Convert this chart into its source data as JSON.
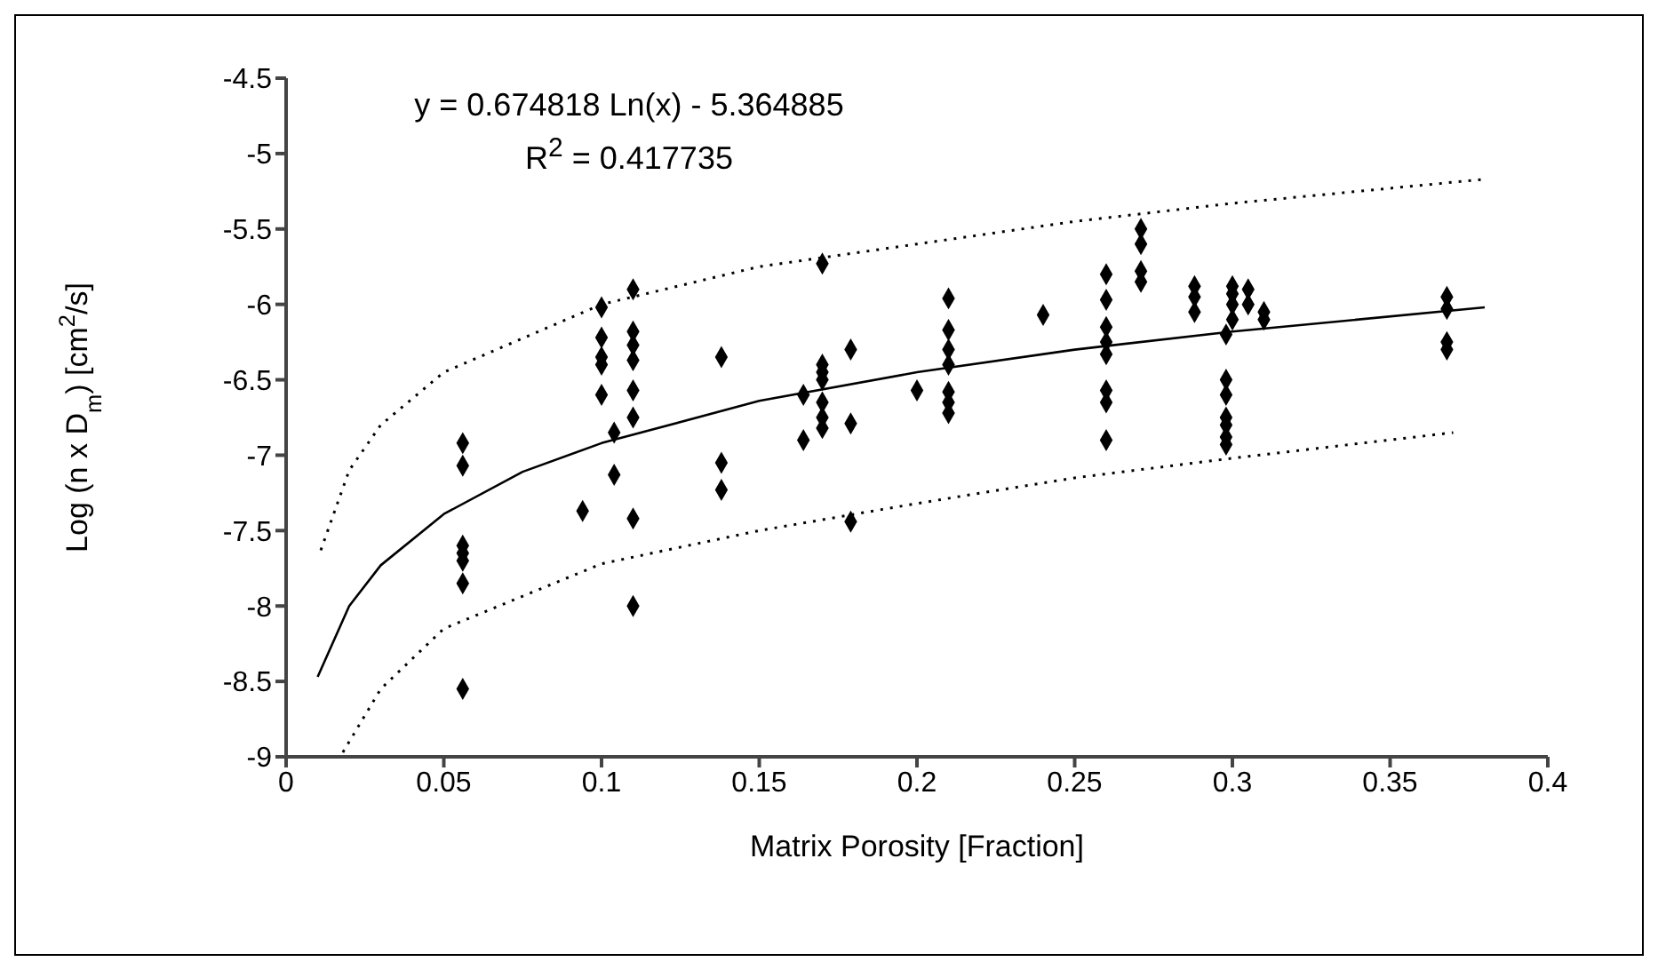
{
  "chart_data": {
    "type": "scatter",
    "xlabel": "Matrix Porosity [Fraction]",
    "ylabel": "Log (n x D$_{m}$) [cm$^{2}$/s]",
    "xlim": [
      0,
      0.4
    ],
    "xticks": [
      0,
      0.05,
      0.1,
      0.15,
      0.2,
      0.25,
      0.3,
      0.35,
      0.4
    ],
    "ylim": [
      -9,
      -4.5
    ],
    "yticks": [
      -9,
      -8.5,
      -8,
      -7.5,
      -7,
      -6.5,
      -6,
      -5.5,
      -5,
      -4.5
    ],
    "grid": false,
    "legend": false,
    "marker": "diamond",
    "annotations": [
      "y = 0.674818 Ln(x) - 5.364885",
      "R$^{2}$ = 0.417735"
    ],
    "series": [
      {
        "color": "#000000",
        "x": [
          0.056,
          0.056,
          0.056,
          0.056,
          0.056,
          0.056,
          0.056,
          0.094,
          0.1,
          0.1,
          0.1,
          0.1,
          0.1,
          0.104,
          0.104,
          0.11,
          0.11,
          0.11,
          0.11,
          0.11,
          0.11,
          0.11,
          0.11,
          0.138,
          0.138,
          0.138,
          0.164,
          0.164,
          0.17,
          0.17,
          0.17,
          0.17,
          0.17,
          0.17,
          0.17,
          0.179,
          0.179,
          0.179,
          0.2,
          0.21,
          0.21,
          0.21,
          0.21,
          0.21,
          0.21,
          0.21,
          0.24,
          0.26,
          0.26,
          0.26,
          0.26,
          0.26,
          0.26,
          0.26,
          0.26,
          0.271,
          0.271,
          0.271,
          0.271,
          0.288,
          0.288,
          0.288,
          0.298,
          0.298,
          0.298,
          0.298,
          0.298,
          0.298,
          0.298,
          0.3,
          0.3,
          0.3,
          0.3,
          0.305,
          0.305,
          0.31,
          0.31,
          0.368,
          0.368,
          0.368,
          0.368
        ],
        "values": [
          -6.92,
          -7.07,
          -7.6,
          -7.65,
          -7.7,
          -7.85,
          -8.55,
          -7.37,
          -6.02,
          -6.22,
          -6.35,
          -6.4,
          -6.6,
          -6.85,
          -7.13,
          -5.9,
          -6.18,
          -6.27,
          -6.37,
          -6.57,
          -6.75,
          -7.42,
          -8.0,
          -6.35,
          -7.05,
          -7.23,
          -6.6,
          -6.9,
          -5.73,
          -6.4,
          -6.45,
          -6.5,
          -6.65,
          -6.75,
          -6.82,
          -6.3,
          -6.79,
          -7.44,
          -6.57,
          -5.96,
          -6.17,
          -6.3,
          -6.4,
          -6.58,
          -6.65,
          -6.72,
          -6.07,
          -5.8,
          -5.97,
          -6.15,
          -6.25,
          -6.33,
          -6.57,
          -6.65,
          -6.9,
          -5.5,
          -5.6,
          -5.78,
          -5.85,
          -5.88,
          -5.95,
          -6.05,
          -6.2,
          -6.5,
          -6.6,
          -6.75,
          -6.8,
          -6.88,
          -6.93,
          -5.88,
          -5.93,
          -6.0,
          -6.1,
          -5.9,
          -6.0,
          -6.05,
          -6.1,
          -5.95,
          -6.03,
          -6.25,
          -6.3
        ]
      },
      {
        "type": "line",
        "color": "#000000",
        "marker": "none",
        "line_style": "solid",
        "x": [
          0.01,
          0.02,
          0.03,
          0.05,
          0.075,
          0.1,
          0.15,
          0.2,
          0.25,
          0.3,
          0.38
        ],
        "values": [
          -8.47,
          -8.0,
          -7.73,
          -7.39,
          -7.11,
          -6.92,
          -6.64,
          -6.45,
          -6.3,
          -6.18,
          -6.02
        ]
      },
      {
        "type": "line",
        "color": "#000000",
        "marker": "none",
        "line_style": "dotted",
        "x": [
          0.011,
          0.02,
          0.03,
          0.05,
          0.1,
          0.15,
          0.2,
          0.25,
          0.3,
          0.38
        ],
        "values": [
          -7.63,
          -7.1,
          -6.8,
          -6.45,
          -6.0,
          -5.75,
          -5.6,
          -5.45,
          -5.33,
          -5.17
        ]
      },
      {
        "type": "line",
        "color": "#000000",
        "marker": "none",
        "line_style": "dotted",
        "x": [
          0.018,
          0.03,
          0.05,
          0.1,
          0.15,
          0.2,
          0.25,
          0.3,
          0.37
        ],
        "values": [
          -8.97,
          -8.55,
          -8.15,
          -7.72,
          -7.5,
          -7.32,
          -7.15,
          -7.02,
          -6.85
        ]
      }
    ]
  }
}
